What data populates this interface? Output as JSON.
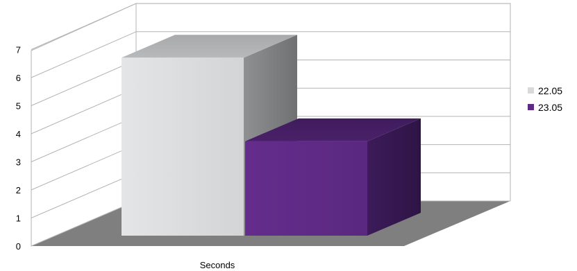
{
  "chart_data": {
    "type": "bar",
    "style": "3d",
    "categories": [
      "Seconds"
    ],
    "series": [
      {
        "name": "22.05",
        "values": [
          6.6
        ],
        "color": "#d9dadc"
      },
      {
        "name": "23.05",
        "values": [
          3.5
        ],
        "color": "#5e2a84"
      }
    ],
    "y_ticks": [
      "0",
      "1",
      "2",
      "3",
      "4",
      "5",
      "6",
      "7"
    ],
    "ylim": [
      0,
      7
    ],
    "grid": true,
    "legend_position": "right",
    "floor_color": "#7f7f7f"
  }
}
